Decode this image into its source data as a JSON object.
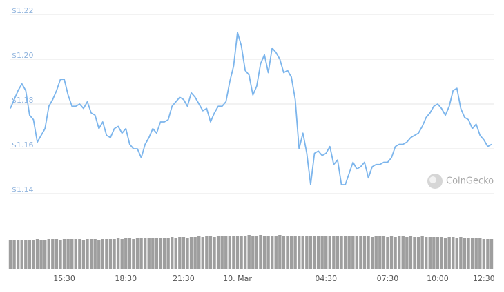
{
  "chart_data": {
    "type": "line",
    "categories": [
      null,
      null,
      null,
      null,
      null,
      null,
      null,
      null,
      null,
      null,
      null,
      null,
      null,
      null,
      "15:30",
      null,
      null,
      null,
      null,
      null,
      null,
      null,
      null,
      null,
      null,
      null,
      null,
      null,
      null,
      null,
      "18:30",
      null,
      null,
      null,
      null,
      null,
      null,
      null,
      null,
      null,
      null,
      null,
      null,
      null,
      null,
      "21:30",
      null,
      null,
      null,
      null,
      null,
      null,
      null,
      null,
      null,
      null,
      null,
      null,
      null,
      "10. Mar",
      null,
      null,
      null,
      null,
      null,
      null,
      null,
      null,
      null,
      null,
      null,
      null,
      null,
      null,
      null,
      null,
      null,
      null,
      null,
      null,
      null,
      null,
      "04:30",
      null,
      null,
      null,
      null,
      null,
      null,
      null,
      null,
      null,
      null,
      null,
      null,
      null,
      null,
      null,
      "07:30",
      null,
      null,
      null,
      null,
      null,
      null,
      null,
      null,
      null,
      null,
      null,
      null,
      "10:00",
      null,
      null,
      null,
      null,
      null,
      null,
      null,
      null,
      null,
      null,
      null,
      "12:30",
      null,
      null
    ],
    "series": [
      {
        "type": "line",
        "color": "#7cb5ec",
        "values": [
          1.178,
          1.182,
          1.186,
          1.189,
          1.186,
          1.175,
          1.173,
          1.163,
          1.166,
          1.169,
          1.179,
          1.182,
          1.186,
          1.191,
          1.191,
          1.184,
          1.179,
          1.179,
          1.18,
          1.178,
          1.181,
          1.176,
          1.175,
          1.169,
          1.172,
          1.166,
          1.165,
          1.169,
          1.17,
          1.167,
          1.169,
          1.162,
          1.16,
          1.16,
          1.156,
          1.162,
          1.165,
          1.169,
          1.167,
          1.172,
          1.172,
          1.173,
          1.179,
          1.181,
          1.183,
          1.182,
          1.179,
          1.185,
          1.183,
          1.18,
          1.177,
          1.178,
          1.172,
          1.176,
          1.179,
          1.179,
          1.181,
          1.19,
          1.197,
          1.212,
          1.206,
          1.195,
          1.193,
          1.184,
          1.188,
          1.198,
          1.202,
          1.194,
          1.205,
          1.203,
          1.2,
          1.194,
          1.195,
          1.192,
          1.182,
          1.16,
          1.167,
          1.158,
          1.144,
          1.158,
          1.159,
          1.157,
          1.158,
          1.161,
          1.153,
          1.155,
          1.144,
          1.144,
          1.149,
          1.154,
          1.151,
          1.152,
          1.154,
          1.147,
          1.152,
          1.153,
          1.153,
          1.154,
          1.154,
          1.156,
          1.161,
          1.162,
          1.162,
          1.163,
          1.165,
          1.166,
          1.167,
          1.17,
          1.174,
          1.176,
          1.179,
          1.18,
          1.178,
          1.175,
          1.179,
          1.186,
          1.187,
          1.178,
          1.174,
          1.173,
          1.169,
          1.171,
          1.166,
          1.164,
          1.161,
          1.162
        ]
      },
      {
        "type": "bar",
        "axis": "y2",
        "color": "#9e9e9e",
        "values": [
          41,
          41,
          42,
          41,
          42,
          42,
          42,
          43,
          42,
          42,
          43,
          43,
          43,
          42,
          43,
          43,
          43,
          43,
          43,
          42,
          43,
          43,
          43,
          42,
          43,
          43,
          43,
          43,
          44,
          43,
          44,
          44,
          43,
          44,
          44,
          44,
          45,
          44,
          45,
          45,
          45,
          45,
          46,
          45,
          46,
          46,
          45,
          46,
          46,
          47,
          46,
          47,
          47,
          46,
          47,
          47,
          48,
          47,
          48,
          48,
          48,
          48,
          49,
          48,
          48,
          49,
          48,
          48,
          48,
          48,
          49,
          48,
          48,
          48,
          48,
          47,
          48,
          48,
          48,
          47,
          48,
          47,
          48,
          47,
          48,
          47,
          47,
          47,
          48,
          47,
          47,
          47,
          47,
          47,
          46,
          47,
          47,
          47,
          46,
          47,
          46,
          47,
          47,
          46,
          47,
          46,
          46,
          47,
          46,
          46,
          46,
          46,
          46,
          45,
          46,
          46,
          45,
          46,
          45,
          45,
          44,
          45,
          44,
          43,
          43,
          43
        ]
      }
    ],
    "ylim": [
      1.14,
      1.22
    ],
    "yticks": [
      {
        "value": 1.22,
        "label": "$1.22"
      },
      {
        "value": 1.2,
        "label": "$1.20"
      },
      {
        "value": 1.18,
        "label": "$1.18"
      },
      {
        "value": 1.16,
        "label": "$1.16"
      },
      {
        "value": 1.14,
        "label": "$1.14"
      }
    ],
    "y2lim": [
      0,
      60
    ],
    "grid": true,
    "watermark": "CoinGecko"
  }
}
